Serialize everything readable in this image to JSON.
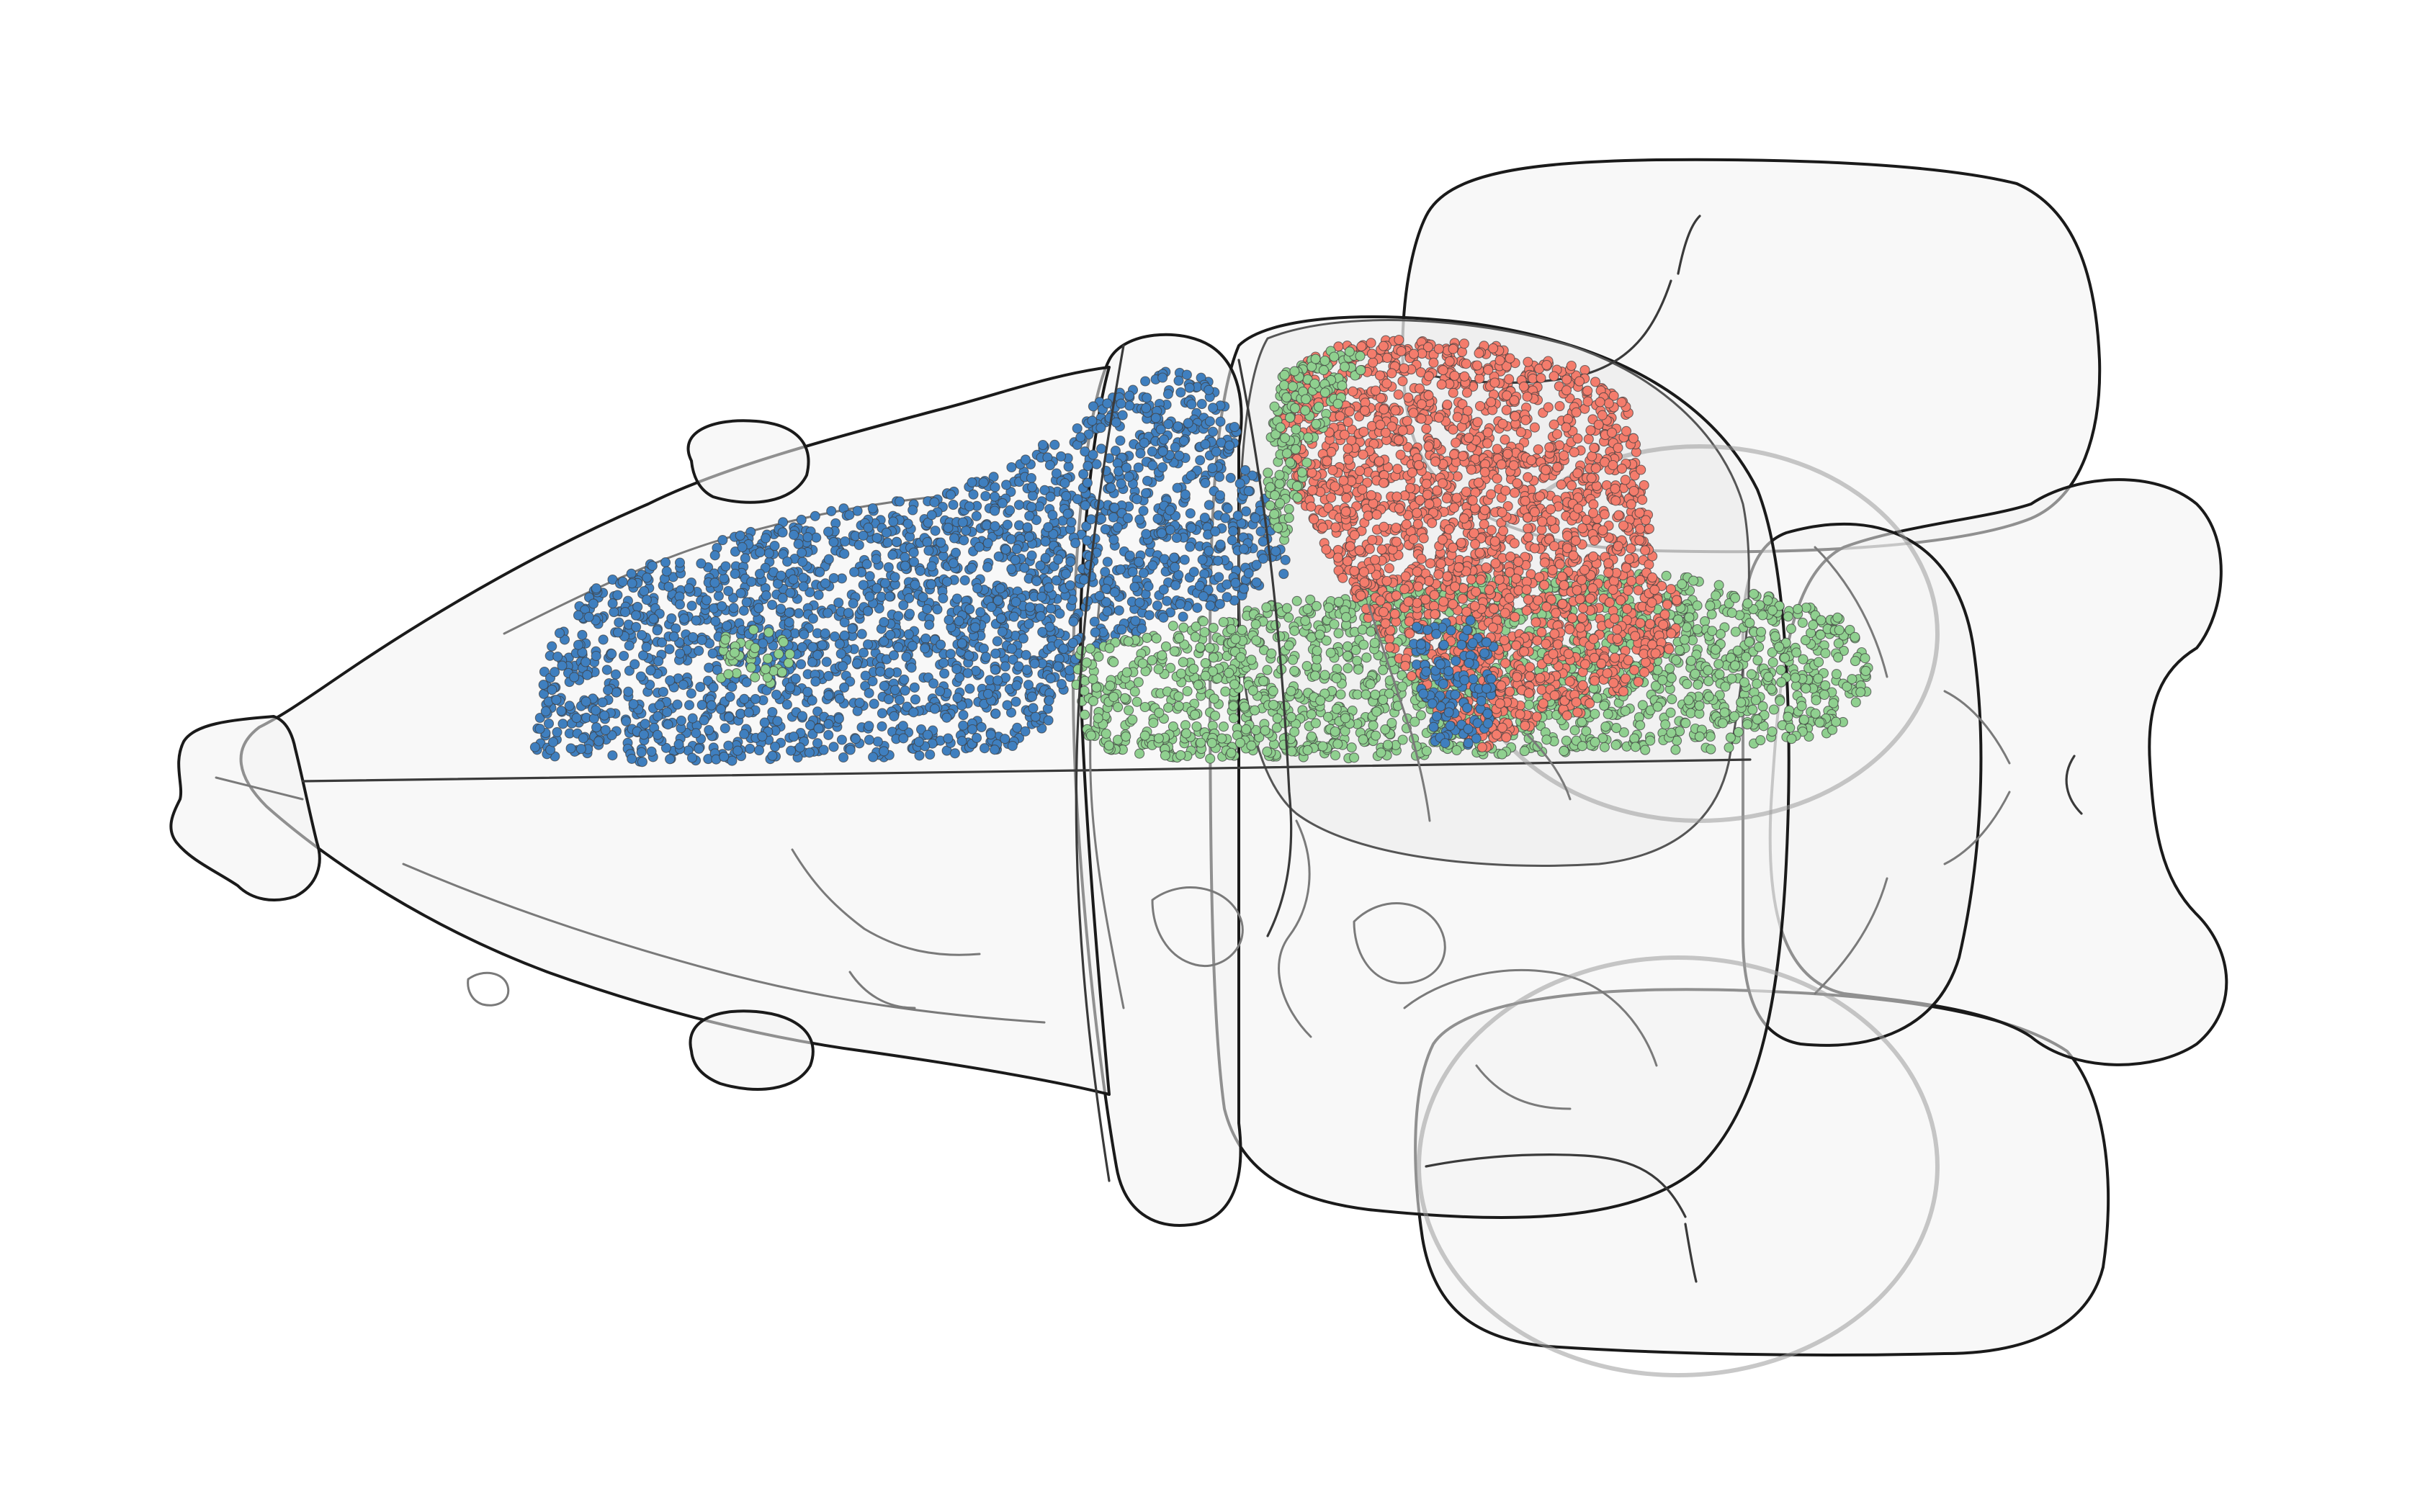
{
  "figure": {
    "view": "dorsal",
    "background": "#ffffff",
    "shell_fill": "#f2f2f2",
    "outline_color": "#1a1a1a"
  },
  "cell_groups": [
    {
      "color": "#3f7fbf"
    },
    {
      "color": "#8fd08f"
    },
    {
      "color": "#f47c6c"
    }
  ]
}
